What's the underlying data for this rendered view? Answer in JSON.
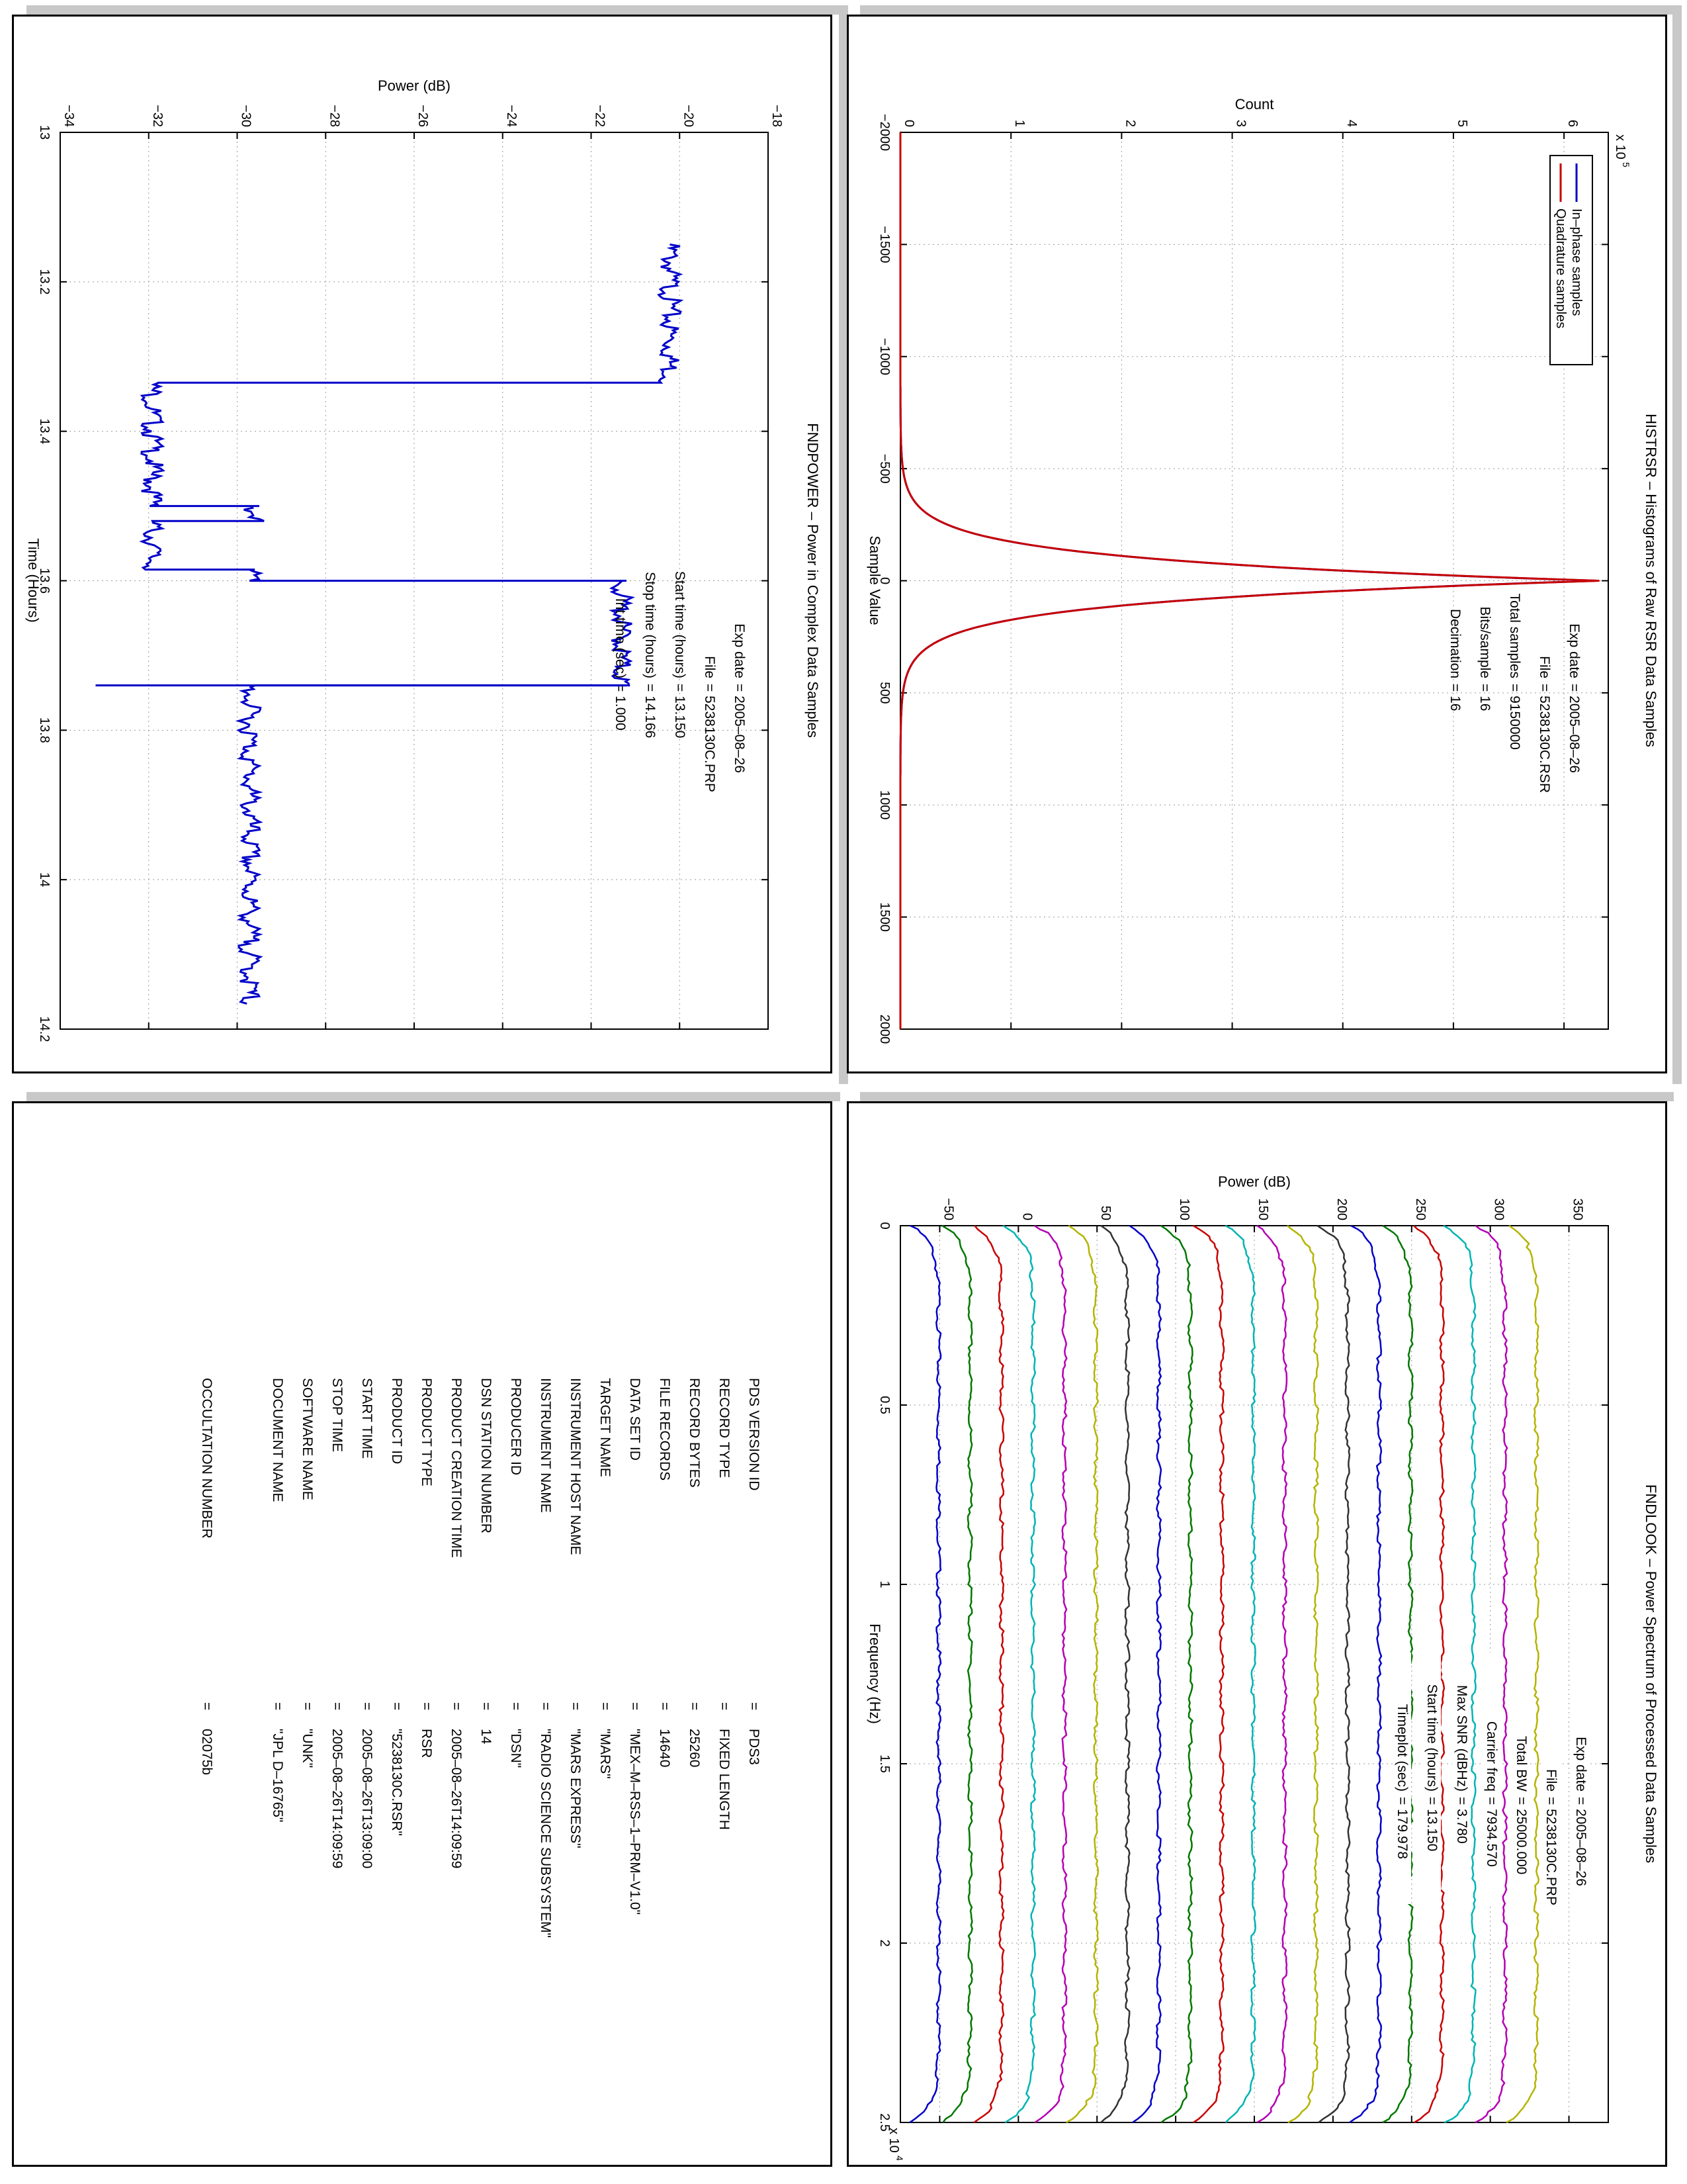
{
  "panels": {
    "fndpower": {
      "title": "FNDPOWER – Power in Complex Data Samples",
      "xlabel": "Power (dB)",
      "ylabel": "Time (Hours)",
      "info": [
        {
          "label": "Exp date",
          "value": "= 2005–08–26"
        },
        {
          "label": "File",
          "value": "= 5238130C.PRP"
        },
        {
          "label": "Start time (hours)",
          "value": "= 13.150"
        },
        {
          "label": "Stop time (hours)",
          "value": "= 14.166"
        },
        {
          "label": "Int time (sec)",
          "value": "= 1.000"
        }
      ]
    },
    "histrsr": {
      "title": "HISTRSR – Histograms of Raw RSR Data Samples",
      "ylabel": "Count",
      "xlabel": "Sample Value",
      "multiplier": "x 10",
      "multiplier_exp": "5",
      "info": [
        {
          "label": "Exp date",
          "value": "= 2005–08–26"
        },
        {
          "label": "File",
          "value": "= 5238130C.RSR"
        },
        {
          "label": "Total samples",
          "value": "= 9150000"
        },
        {
          "label": "Bits/sample",
          "value": "= 16"
        },
        {
          "label": "Decimation",
          "value": "= 16"
        }
      ]
    },
    "fndlook": {
      "title": "FNDLOOK – Power Spectrum of Processed Data Samples",
      "ylabel": "Power (dB)",
      "xlabel": "Frequency (Hz)",
      "multiplier": "x 10",
      "multiplier_exp": "4",
      "info": [
        {
          "label": "Exp date",
          "value": "= 2005–08–26"
        },
        {
          "label": "File",
          "value": "= 5238130C.PRP"
        },
        {
          "label": "Total BW",
          "value": "= 25000.000"
        },
        {
          "label": "Carrier freq",
          "value": "= 7934.570"
        },
        {
          "label": "Max SNR (dBHz)",
          "value": "= 3.780"
        },
        {
          "label": "Start time (hours)",
          "value": "= 13.150"
        },
        {
          "label": "Timeplot (sec)",
          "value": "= 179.978"
        }
      ]
    },
    "label": {
      "items": [
        {
          "key": "PDS VERSION ID",
          "value": "PDS3"
        },
        {
          "key": "RECORD TYPE",
          "value": "FIXED LENGTH"
        },
        {
          "key": "RECORD BYTES",
          "value": "25260"
        },
        {
          "key": "FILE RECORDS",
          "value": "14640"
        },
        {
          "key": "DATA SET ID",
          "value": "\"MEX–M–RSS–1–PRM–V1.0\""
        },
        {
          "key": "TARGET NAME",
          "value": "\"MARS\""
        },
        {
          "key": "INSTRUMENT HOST NAME",
          "value": "\"MARS EXPRESS\""
        },
        {
          "key": "INSTRUMENT NAME",
          "value": "\"RADIO SCIENCE SUBSYSTEM\""
        },
        {
          "key": "PRODUCER ID",
          "value": "\"DSN\""
        },
        {
          "key": "DSN STATION NUMBER",
          "value": "14"
        },
        {
          "key": "PRODUCT CREATION TIME",
          "value": "2005–08–26T14:09:59"
        },
        {
          "key": "PRODUCT TYPE",
          "value": "RSR"
        },
        {
          "key": "PRODUCT ID",
          "value": "\"5238130C.RSR\""
        },
        {
          "key": "START TIME",
          "value": "2005–08–26T13:09:00"
        },
        {
          "key": "STOP TIME",
          "value": "2005–08–26T14:09:59"
        },
        {
          "key": "SOFTWARE NAME",
          "value": "\"UNK\""
        },
        {
          "key": "DOCUMENT NAME",
          "value": "\"JPL D–16765\""
        },
        {
          "key": "OCCULTATION NUMBER",
          "value": "02075b"
        }
      ]
    }
  },
  "chart_data": [
    {
      "type": "line",
      "id": "fndpower",
      "title": "FNDPOWER – Power in Complex Data Samples",
      "xlabel": "Time (Hours)",
      "ylabel": "Power (dB)",
      "xlim": [
        13.0,
        14.2
      ],
      "ylim": [
        -34,
        -18
      ],
      "xticks": [
        "13",
        "13.2",
        "13.4",
        "13.6",
        "13.8",
        "14",
        "14.2"
      ],
      "yticks": [
        "−34",
        "−32",
        "−30",
        "−28",
        "−26",
        "−24",
        "−22",
        "−20",
        "−18"
      ],
      "grid": true,
      "color": "#0000c8",
      "x": [
        13.15,
        13.335,
        13.335,
        13.5,
        13.5,
        13.52,
        13.52,
        13.585,
        13.585,
        13.6,
        13.6,
        13.74,
        13.74,
        14.166
      ],
      "y": [
        -20.1,
        -20.1,
        -31.8,
        -31.8,
        -29.5,
        -29.5,
        -31.8,
        -31.8,
        -29.6,
        -29.6,
        -21.2,
        -21.2,
        -29.6,
        -29.6
      ]
    },
    {
      "type": "line",
      "id": "histrsr",
      "title": "HISTRSR – Histograms of Raw RSR Data Samples",
      "xlabel": "Sample Value",
      "ylabel": "Count",
      "xlim": [
        -2000,
        2000
      ],
      "ylim": [
        0,
        640000
      ],
      "xticks": [
        "−2000",
        "−1500",
        "−1000",
        "−500",
        "0",
        "500",
        "1000",
        "1500",
        "2000"
      ],
      "yticks": [
        "0",
        "1",
        "2",
        "3",
        "4",
        "5",
        "6"
      ],
      "y_scale": 100000,
      "grid": true,
      "legend_position": "top-right",
      "series": [
        {
          "name": "In–phase samples",
          "color": "#0000c8",
          "peak": 630000,
          "sigma": 120
        },
        {
          "name": "Quadrature samples",
          "color": "#c80000",
          "peak": 632000,
          "sigma": 120
        }
      ]
    },
    {
      "type": "line",
      "id": "fndlook",
      "title": "FNDLOOK – Power Spectrum of Processed Data Samples",
      "xlabel": "Frequency (Hz)",
      "ylabel": "Power (dB)",
      "xlim": [
        0,
        25000
      ],
      "ylim": [
        -75,
        375
      ],
      "xticks": [
        "0",
        "0.5",
        "1",
        "1.5",
        "2",
        "2.5"
      ],
      "yticks": [
        "−50",
        "0",
        "50",
        "100",
        "150",
        "200",
        "250",
        "300",
        "350"
      ],
      "grid": true,
      "series": [
        {
          "offset": -50,
          "color": "#0000c8"
        },
        {
          "offset": -30,
          "color": "#007800"
        },
        {
          "offset": -10,
          "color": "#c80000"
        },
        {
          "offset": 10,
          "color": "#00b4b4"
        },
        {
          "offset": 30,
          "color": "#b400b4"
        },
        {
          "offset": 50,
          "color": "#b4b400"
        },
        {
          "offset": 70,
          "color": "#323232"
        },
        {
          "offset": 90,
          "color": "#0000c8"
        },
        {
          "offset": 110,
          "color": "#007800"
        },
        {
          "offset": 130,
          "color": "#c80000"
        },
        {
          "offset": 150,
          "color": "#00b4b4"
        },
        {
          "offset": 170,
          "color": "#b400b4"
        },
        {
          "offset": 190,
          "color": "#b4b400"
        },
        {
          "offset": 210,
          "color": "#323232"
        },
        {
          "offset": 230,
          "color": "#0000c8"
        },
        {
          "offset": 250,
          "color": "#007800"
        },
        {
          "offset": 270,
          "color": "#c80000"
        },
        {
          "offset": 290,
          "color": "#00b4b4"
        },
        {
          "offset": 310,
          "color": "#b400b4"
        },
        {
          "offset": 330,
          "color": "#b4b400"
        }
      ]
    }
  ]
}
